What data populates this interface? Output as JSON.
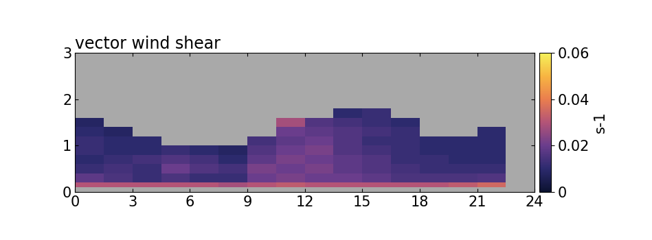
{
  "chart_data": {
    "type": "heatmap",
    "title": "vector wind shear",
    "x_edges": [
      0,
      1.5,
      3,
      4.5,
      6,
      7.5,
      9,
      10.5,
      12,
      13.5,
      15,
      16.5,
      18,
      19.5,
      21,
      22.5
    ],
    "y_edges": [
      0,
      0.1,
      0.2,
      0.4,
      0.6,
      0.8,
      1.0,
      1.2,
      1.4,
      1.6,
      1.8,
      2.0
    ],
    "cells": [
      [
        null,
        null,
        null,
        null,
        null,
        null,
        null,
        null,
        null,
        null,
        null,
        null,
        null,
        null,
        null
      ],
      [
        0.03,
        0.03,
        0.03,
        0.03,
        0.03,
        0.028,
        0.03,
        0.032,
        0.03,
        0.03,
        0.03,
        0.03,
        0.03,
        0.032,
        0.035
      ],
      [
        0.018,
        0.015,
        0.012,
        0.015,
        0.012,
        0.012,
        0.02,
        0.022,
        0.02,
        0.02,
        0.018,
        0.015,
        0.015,
        0.015,
        0.016
      ],
      [
        0.012,
        0.014,
        0.012,
        0.02,
        0.016,
        0.014,
        0.022,
        0.02,
        0.022,
        0.018,
        0.016,
        0.014,
        0.012,
        0.012,
        0.012
      ],
      [
        0.01,
        0.012,
        0.014,
        0.016,
        0.014,
        0.01,
        0.018,
        0.022,
        0.02,
        0.018,
        0.016,
        0.012,
        0.012,
        0.01,
        0.01
      ],
      [
        0.012,
        0.01,
        0.01,
        0.012,
        0.01,
        0.008,
        0.016,
        0.02,
        0.022,
        0.016,
        0.014,
        0.012,
        0.01,
        0.01,
        0.01
      ],
      [
        0.012,
        0.01,
        0.01,
        null,
        null,
        null,
        0.014,
        0.018,
        0.02,
        0.016,
        0.012,
        0.012,
        0.01,
        0.01,
        0.01
      ],
      [
        0.01,
        0.008,
        null,
        null,
        null,
        null,
        null,
        0.02,
        0.018,
        0.016,
        0.014,
        0.012,
        null,
        null,
        0.01
      ],
      [
        0.008,
        null,
        null,
        null,
        null,
        null,
        null,
        0.028,
        0.016,
        0.014,
        0.012,
        0.01,
        null,
        null,
        null
      ],
      [
        null,
        null,
        null,
        null,
        null,
        null,
        null,
        null,
        null,
        0.01,
        0.012,
        null,
        null,
        null,
        null
      ],
      [
        null,
        null,
        null,
        null,
        null,
        null,
        null,
        null,
        null,
        null,
        null,
        null,
        null,
        null,
        null
      ]
    ],
    "colorbar": {
      "range": [
        0,
        0.06
      ],
      "ticks": [
        0,
        0.02,
        0.04,
        0.06
      ],
      "label": "s-1"
    },
    "xlim": [
      0,
      24
    ],
    "xticks": [
      0,
      3,
      6,
      9,
      12,
      15,
      18,
      21,
      24
    ],
    "ylim": [
      0,
      3
    ],
    "yticks": [
      0,
      1,
      2,
      3
    ]
  }
}
